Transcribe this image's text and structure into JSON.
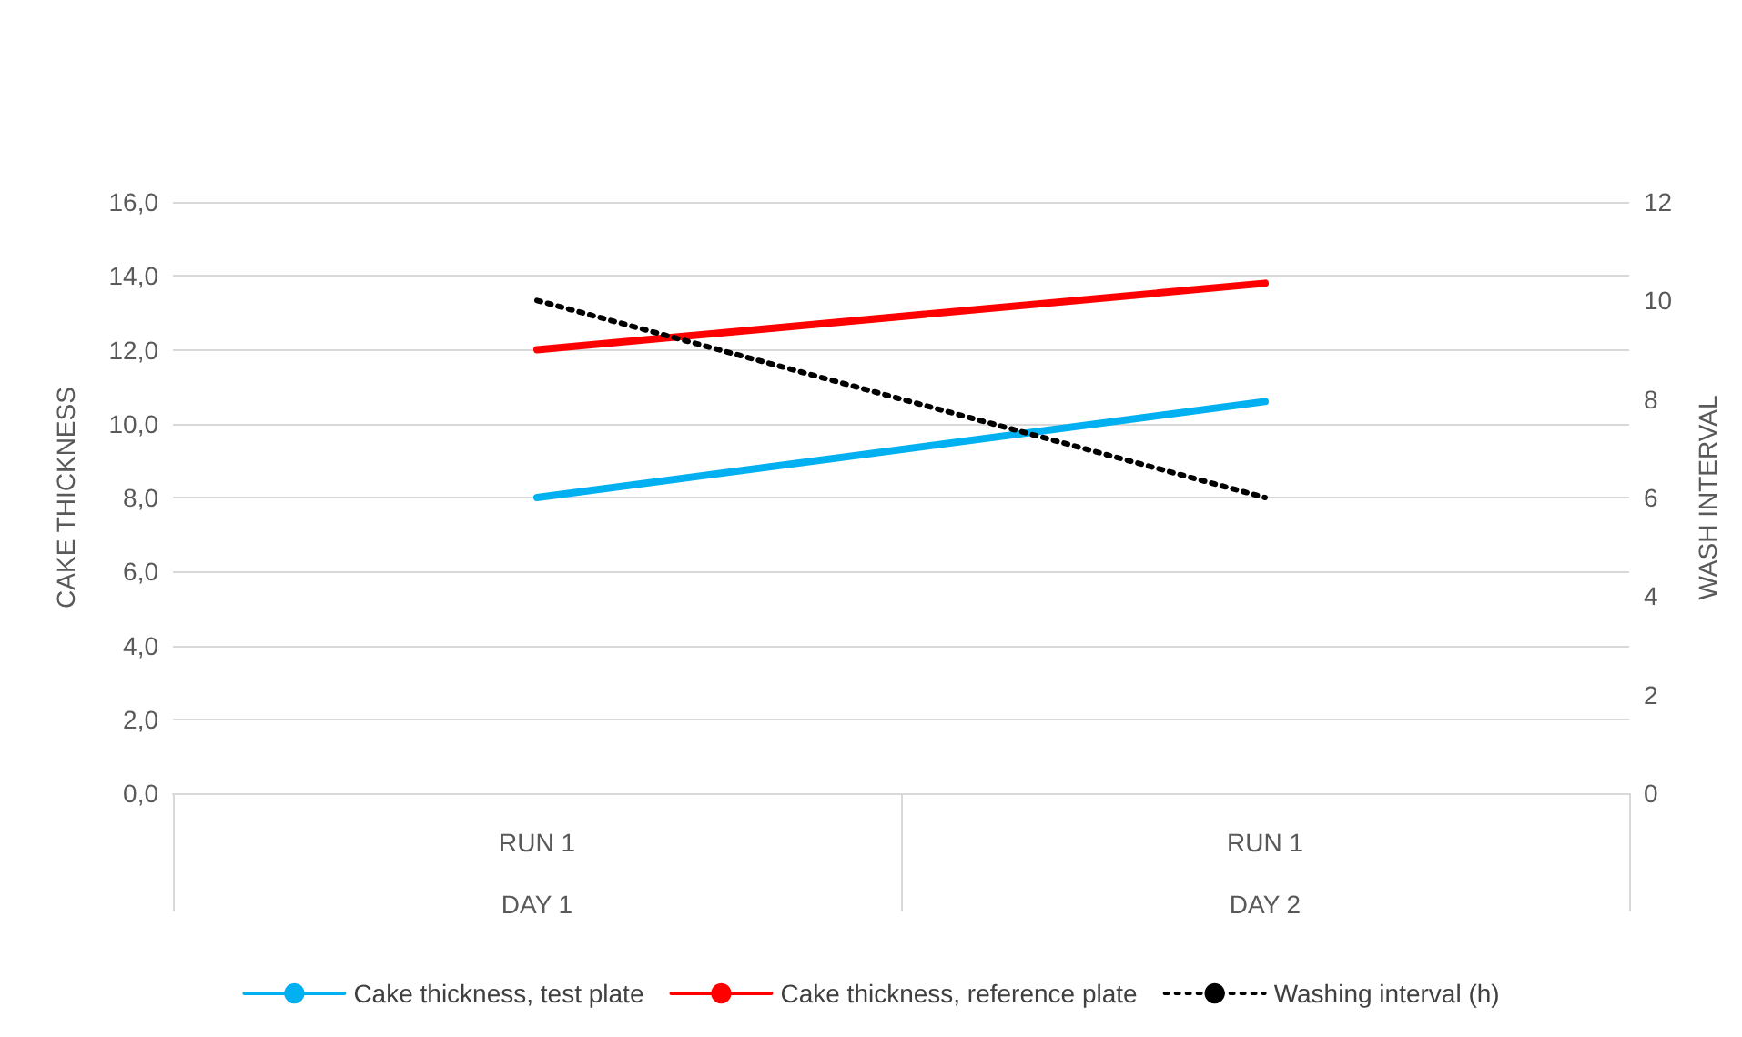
{
  "chart_data": {
    "type": "line",
    "ylabel": "CAKE THICKNESS",
    "y2label": "WASH INTERVAL",
    "categories": [
      "RUN 1\nDAY 1",
      "RUN 1\nDAY 2"
    ],
    "series": [
      {
        "name": "Cake thickness, test plate",
        "color": "#00b0f0",
        "values": [
          8.0,
          10.6
        ]
      },
      {
        "name": "Cake thickness, reference plate",
        "color": "#ff0000",
        "values": [
          12.0,
          13.8
        ]
      },
      {
        "name": "Washing interval (h)",
        "color": "#000000",
        "values": [
          10,
          6
        ],
        "axis": "y2",
        "line_style": "dotted"
      }
    ],
    "ylim": [
      0,
      16
    ],
    "yticks": [
      {
        "value": 0,
        "label": "0,0"
      },
      {
        "value": 2,
        "label": "2,0"
      },
      {
        "value": 4,
        "label": "4,0"
      },
      {
        "value": 6,
        "label": "6,0"
      },
      {
        "value": 8,
        "label": "8,0"
      },
      {
        "value": 10,
        "label": "10,0"
      },
      {
        "value": 12,
        "label": "12,0"
      },
      {
        "value": 14,
        "label": "14,0"
      },
      {
        "value": 16,
        "label": "16,0"
      }
    ],
    "y2lim": [
      0,
      12
    ],
    "y2ticks": [
      0,
      2,
      4,
      6,
      8,
      10,
      12
    ],
    "grid": "y",
    "legend": "bottom",
    "marker": "none"
  }
}
